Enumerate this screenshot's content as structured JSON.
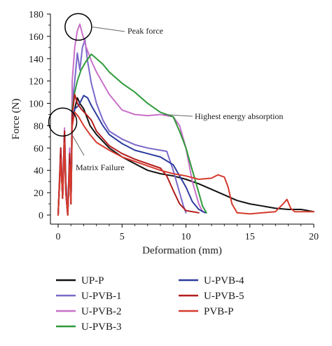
{
  "chart_data": {
    "type": "line",
    "xlabel": "Deformation (mm)",
    "ylabel": "Force (N)",
    "xlim": [
      0,
      20
    ],
    "ylim": [
      0,
      180
    ],
    "xticks": [
      "0",
      "5",
      "10",
      "15",
      "20"
    ],
    "yticks": [
      "0",
      "20",
      "40",
      "60",
      "80",
      "100",
      "120",
      "140",
      "160",
      "180"
    ],
    "grid": false,
    "legend_position": "bottom",
    "annotations": [
      {
        "text": "Peak force",
        "at": [
          1.8,
          171
        ]
      },
      {
        "text": "Highest energy absorption",
        "at": [
          8.8,
          90
        ]
      },
      {
        "text": "Matrix Failure",
        "at": [
          0.8,
          82
        ]
      }
    ],
    "series": [
      {
        "name": "UP-P",
        "color": "#111111",
        "points": [
          [
            0,
            0
          ],
          [
            0.2,
            55
          ],
          [
            0.35,
            20
          ],
          [
            0.5,
            75
          ],
          [
            0.6,
            30
          ],
          [
            0.75,
            0
          ],
          [
            0.9,
            45
          ],
          [
            1.0,
            10
          ],
          [
            1.1,
            80
          ],
          [
            1.3,
            95
          ],
          [
            1.5,
            105
          ],
          [
            1.7,
            100
          ],
          [
            2,
            95
          ],
          [
            2.5,
            80
          ],
          [
            3,
            72
          ],
          [
            4,
            60
          ],
          [
            5,
            52
          ],
          [
            6,
            46
          ],
          [
            7,
            40
          ],
          [
            8,
            37
          ],
          [
            9,
            35
          ],
          [
            10,
            32
          ],
          [
            11,
            28
          ],
          [
            12,
            23
          ],
          [
            13,
            18
          ],
          [
            14,
            13
          ],
          [
            15,
            10
          ],
          [
            16,
            8
          ],
          [
            17,
            6
          ],
          [
            18,
            5
          ],
          [
            19,
            5
          ],
          [
            20,
            3
          ]
        ]
      },
      {
        "name": "U-PVB-1",
        "color": "#7b68c9",
        "points": [
          [
            0,
            0
          ],
          [
            0.2,
            55
          ],
          [
            0.35,
            15
          ],
          [
            0.5,
            70
          ],
          [
            0.6,
            20
          ],
          [
            0.75,
            0
          ],
          [
            0.9,
            55
          ],
          [
            1.0,
            10
          ],
          [
            1.1,
            100
          ],
          [
            1.3,
            120
          ],
          [
            1.5,
            145
          ],
          [
            1.7,
            130
          ],
          [
            1.9,
            150
          ],
          [
            2.1,
            157
          ],
          [
            2.3,
            138
          ],
          [
            2.6,
            118
          ],
          [
            3,
            100
          ],
          [
            3.5,
            85
          ],
          [
            4,
            75
          ],
          [
            5,
            68
          ],
          [
            6,
            63
          ],
          [
            7,
            60
          ],
          [
            8,
            58
          ],
          [
            8.5,
            57
          ],
          [
            9,
            40
          ],
          [
            9.5,
            20
          ],
          [
            9.8,
            8
          ],
          [
            10,
            2
          ]
        ]
      },
      {
        "name": "U-PVB-2",
        "color": "#c870c8",
        "points": [
          [
            0,
            0
          ],
          [
            0.2,
            60
          ],
          [
            0.35,
            20
          ],
          [
            0.5,
            78
          ],
          [
            0.6,
            25
          ],
          [
            0.75,
            0
          ],
          [
            0.9,
            60
          ],
          [
            1.0,
            10
          ],
          [
            1.1,
            120
          ],
          [
            1.3,
            150
          ],
          [
            1.5,
            165
          ],
          [
            1.7,
            171
          ],
          [
            1.9,
            162
          ],
          [
            2.2,
            150
          ],
          [
            2.6,
            138
          ],
          [
            3,
            128
          ],
          [
            3.5,
            118
          ],
          [
            4,
            108
          ],
          [
            5,
            94
          ],
          [
            6,
            90
          ],
          [
            7,
            89
          ],
          [
            8,
            90
          ],
          [
            9,
            88
          ],
          [
            9.5,
            80
          ],
          [
            10,
            60
          ],
          [
            10.5,
            30
          ],
          [
            11,
            10
          ],
          [
            11.3,
            3
          ]
        ]
      },
      {
        "name": "U-PVB-3",
        "color": "#2e9a3a",
        "points": [
          [
            0,
            0
          ],
          [
            0.2,
            50
          ],
          [
            0.35,
            15
          ],
          [
            0.5,
            70
          ],
          [
            0.6,
            20
          ],
          [
            0.75,
            0
          ],
          [
            0.9,
            50
          ],
          [
            1.0,
            10
          ],
          [
            1.1,
            95
          ],
          [
            1.3,
            110
          ],
          [
            1.5,
            120
          ],
          [
            1.8,
            130
          ],
          [
            2.2,
            138
          ],
          [
            2.6,
            144
          ],
          [
            3,
            140
          ],
          [
            3.5,
            135
          ],
          [
            4,
            128
          ],
          [
            5,
            118
          ],
          [
            6,
            110
          ],
          [
            7,
            100
          ],
          [
            8,
            92
          ],
          [
            9,
            88
          ],
          [
            9.5,
            75
          ],
          [
            10,
            60
          ],
          [
            10.5,
            40
          ],
          [
            11,
            20
          ],
          [
            11.3,
            8
          ],
          [
            11.6,
            2
          ]
        ]
      },
      {
        "name": "U-PVB-4",
        "color": "#2c3c9c",
        "points": [
          [
            0,
            0
          ],
          [
            0.2,
            55
          ],
          [
            0.35,
            15
          ],
          [
            0.5,
            72
          ],
          [
            0.6,
            20
          ],
          [
            0.75,
            0
          ],
          [
            0.9,
            50
          ],
          [
            1.0,
            10
          ],
          [
            1.1,
            85
          ],
          [
            1.3,
            95
          ],
          [
            1.6,
            98
          ],
          [
            2,
            107
          ],
          [
            2.3,
            105
          ],
          [
            2.6,
            98
          ],
          [
            3,
            90
          ],
          [
            3.5,
            80
          ],
          [
            4,
            72
          ],
          [
            5,
            64
          ],
          [
            6,
            58
          ],
          [
            7,
            55
          ],
          [
            8,
            52
          ],
          [
            9,
            45
          ],
          [
            9.5,
            35
          ],
          [
            10,
            25
          ],
          [
            10.5,
            12
          ],
          [
            11,
            5
          ],
          [
            11.5,
            2
          ]
        ]
      },
      {
        "name": "U-PVB-5",
        "color": "#b31c1c",
        "points": [
          [
            0,
            0
          ],
          [
            0.2,
            60
          ],
          [
            0.35,
            15
          ],
          [
            0.5,
            75
          ],
          [
            0.6,
            20
          ],
          [
            0.75,
            0
          ],
          [
            0.9,
            55
          ],
          [
            1.0,
            10
          ],
          [
            1.1,
            90
          ],
          [
            1.3,
            108
          ],
          [
            1.5,
            100
          ],
          [
            1.8,
            95
          ],
          [
            2.2,
            90
          ],
          [
            2.6,
            85
          ],
          [
            3,
            75
          ],
          [
            4,
            62
          ],
          [
            5,
            55
          ],
          [
            6,
            50
          ],
          [
            7,
            46
          ],
          [
            8,
            42
          ],
          [
            8.5,
            35
          ],
          [
            9,
            22
          ],
          [
            9.5,
            10
          ],
          [
            10,
            4
          ],
          [
            11,
            2
          ]
        ]
      },
      {
        "name": "PVB-P",
        "color": "#d63a2e",
        "points": [
          [
            0,
            0
          ],
          [
            0.2,
            50
          ],
          [
            0.35,
            15
          ],
          [
            0.5,
            65
          ],
          [
            0.6,
            20
          ],
          [
            0.75,
            0
          ],
          [
            0.9,
            45
          ],
          [
            1.0,
            10
          ],
          [
            1.1,
            80
          ],
          [
            1.3,
            92
          ],
          [
            1.6,
            88
          ],
          [
            2,
            80
          ],
          [
            2.5,
            72
          ],
          [
            3,
            65
          ],
          [
            4,
            58
          ],
          [
            5,
            52
          ],
          [
            6,
            48
          ],
          [
            7,
            44
          ],
          [
            8,
            40
          ],
          [
            9,
            37
          ],
          [
            10,
            35
          ],
          [
            11,
            32
          ],
          [
            12,
            33
          ],
          [
            12.5,
            36
          ],
          [
            13,
            34
          ],
          [
            13.3,
            25
          ],
          [
            13.6,
            10
          ],
          [
            14,
            2
          ],
          [
            15,
            1
          ],
          [
            16,
            2
          ],
          [
            17,
            3
          ],
          [
            17.6,
            10
          ],
          [
            17.9,
            14
          ],
          [
            18.2,
            6
          ],
          [
            18.5,
            3
          ],
          [
            19,
            3
          ],
          [
            20,
            3
          ]
        ]
      }
    ]
  }
}
